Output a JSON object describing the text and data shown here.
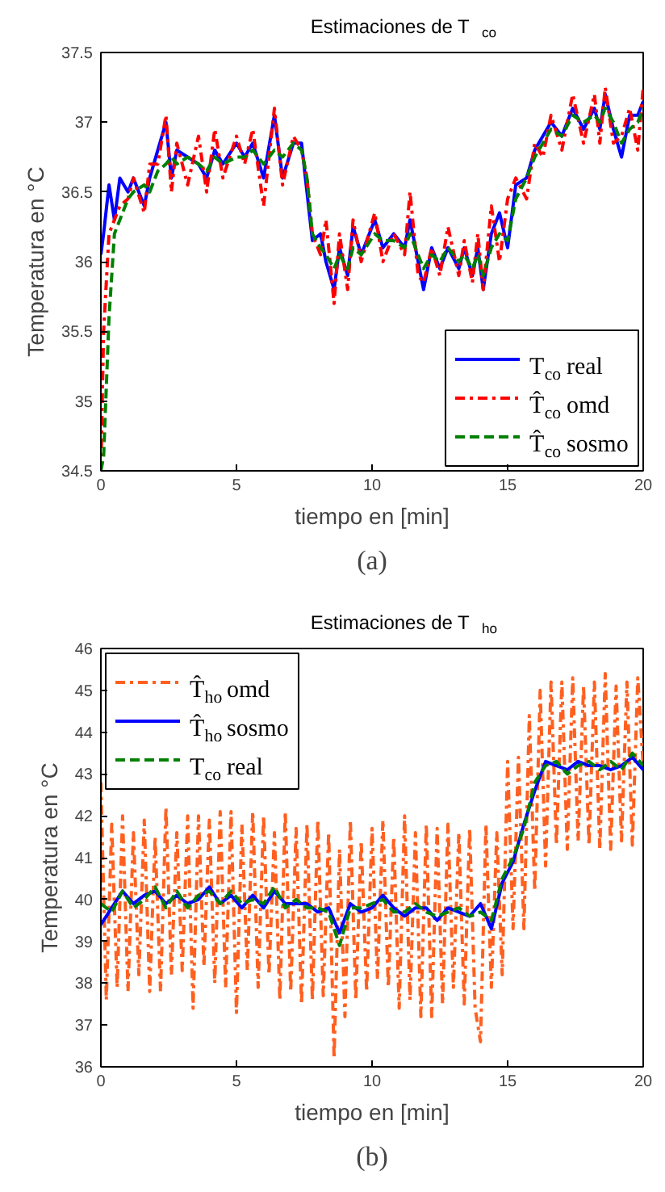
{
  "chart_data": [
    {
      "type": "line",
      "title": "Estimaciones de T$_{co}$",
      "xlabel": "tiempo en [min]",
      "ylabel": "Temperatura en °C",
      "annotations": [
        "(a)"
      ],
      "xlim": [
        0,
        20
      ],
      "ylim": [
        34.5,
        37.5
      ],
      "xticks": [
        0,
        5,
        10,
        15,
        20
      ],
      "yticks": [
        34.5,
        35,
        35.5,
        36,
        36.5,
        37,
        37.5
      ],
      "grid": false,
      "legend": "bottom right",
      "x": [
        0,
        0.1,
        0.3,
        0.5,
        0.7,
        1.0,
        1.2,
        1.6,
        1.8,
        2.1,
        2.4,
        2.6,
        2.8,
        3.2,
        3.6,
        3.9,
        4.2,
        4.5,
        5.0,
        5.3,
        5.6,
        6.0,
        6.4,
        6.7,
        7.1,
        7.4,
        7.6,
        7.8,
        8.1,
        8.3,
        8.6,
        8.8,
        9.1,
        9.3,
        9.6,
        10.1,
        10.4,
        10.8,
        11.2,
        11.4,
        11.7,
        11.9,
        12.2,
        12.5,
        12.8,
        13.2,
        13.4,
        13.7,
        13.9,
        14.1,
        14.4,
        14.7,
        15.0,
        15.3,
        15.7,
        16.0,
        16.3,
        16.6,
        17.0,
        17.4,
        17.8,
        18.2,
        18.4,
        18.6,
        18.9,
        19.2,
        19.5,
        19.8,
        20.0
      ],
      "series": [
        {
          "name": "T$_{co}$ real",
          "color": "#0000ff",
          "line_style": "solid",
          "values": [
            36.05,
            36.2,
            36.55,
            36.3,
            36.6,
            36.5,
            36.6,
            36.4,
            36.6,
            36.8,
            37.0,
            36.6,
            36.8,
            36.75,
            36.7,
            36.6,
            36.8,
            36.7,
            36.85,
            36.75,
            36.85,
            36.6,
            37.05,
            36.6,
            36.85,
            36.85,
            36.5,
            36.15,
            36.2,
            36.0,
            35.8,
            36.1,
            35.9,
            36.25,
            36.05,
            36.3,
            36.1,
            36.2,
            36.1,
            36.3,
            36.0,
            35.8,
            36.1,
            35.95,
            36.1,
            35.95,
            36.1,
            35.9,
            36.1,
            35.8,
            36.2,
            36.35,
            36.1,
            36.55,
            36.6,
            36.8,
            36.9,
            37.0,
            36.9,
            37.1,
            36.95,
            37.1,
            36.95,
            37.2,
            36.95,
            36.75,
            37.05,
            37.05,
            37.15
          ]
        },
        {
          "name": "T̂$_{co}$ omd",
          "color": "#ff0000",
          "line_style": "dashdot",
          "values": [
            34.5,
            35.5,
            36.2,
            36.3,
            36.4,
            36.45,
            36.6,
            36.35,
            36.7,
            36.7,
            37.05,
            36.5,
            36.85,
            36.55,
            36.9,
            36.5,
            36.95,
            36.6,
            36.9,
            36.7,
            36.95,
            36.4,
            37.1,
            36.55,
            36.9,
            36.8,
            36.6,
            36.2,
            36.05,
            36.3,
            35.7,
            36.2,
            35.8,
            36.3,
            36.0,
            36.35,
            36.0,
            36.2,
            36.05,
            36.5,
            35.9,
            35.85,
            36.1,
            35.9,
            36.25,
            35.9,
            36.15,
            35.85,
            36.2,
            35.8,
            36.4,
            36.0,
            36.45,
            36.6,
            36.45,
            36.85,
            36.75,
            37.05,
            36.8,
            37.2,
            36.85,
            37.2,
            36.85,
            37.25,
            36.85,
            36.9,
            37.1,
            36.8,
            37.25
          ]
        },
        {
          "name": "T̂$_{co}$ sosmo",
          "color": "#008000",
          "line_style": "dashed",
          "values": [
            34.5,
            34.6,
            35.6,
            36.2,
            36.3,
            36.45,
            36.5,
            36.55,
            36.5,
            36.65,
            36.7,
            36.75,
            36.7,
            36.75,
            36.7,
            36.65,
            36.75,
            36.7,
            36.75,
            36.75,
            36.8,
            36.7,
            36.8,
            36.75,
            36.85,
            36.8,
            36.6,
            36.2,
            36.1,
            36.05,
            35.95,
            36.05,
            35.95,
            36.1,
            36.05,
            36.2,
            36.15,
            36.15,
            36.1,
            36.2,
            36.05,
            35.95,
            36.05,
            36.0,
            36.1,
            36.0,
            36.05,
            35.95,
            36.05,
            35.9,
            36.1,
            36.2,
            36.15,
            36.45,
            36.6,
            36.75,
            36.85,
            36.95,
            36.9,
            37.05,
            37.0,
            37.05,
            37.0,
            37.1,
            37.0,
            36.85,
            36.95,
            37.0,
            37.1
          ]
        }
      ]
    },
    {
      "type": "line",
      "title": "Estimaciones de T$_{ho}$",
      "xlabel": "tiempo en [min]",
      "ylabel": "Temperatura en °C",
      "annotations": [
        "(b)"
      ],
      "xlim": [
        0,
        20
      ],
      "ylim": [
        36,
        46
      ],
      "xticks": [
        0,
        5,
        10,
        15,
        20
      ],
      "yticks": [
        36,
        37,
        38,
        39,
        40,
        41,
        42,
        43,
        44,
        45,
        46
      ],
      "grid": false,
      "legend": "top left",
      "series": [
        {
          "name": "T̂$_{ho}$ omd",
          "color": "#ff6020",
          "line_style": "dashdot",
          "x": [
            0,
            0.2,
            0.4,
            0.6,
            0.8,
            1.0,
            1.2,
            1.4,
            1.6,
            1.8,
            2.0,
            2.2,
            2.4,
            2.6,
            2.8,
            3.0,
            3.2,
            3.4,
            3.6,
            3.8,
            4.0,
            4.2,
            4.4,
            4.6,
            4.8,
            5.0,
            5.2,
            5.4,
            5.6,
            5.8,
            6.0,
            6.2,
            6.4,
            6.6,
            6.8,
            7.0,
            7.2,
            7.4,
            7.6,
            7.8,
            8.0,
            8.2,
            8.4,
            8.6,
            8.8,
            9.0,
            9.2,
            9.4,
            9.6,
            9.8,
            10.0,
            10.2,
            10.4,
            10.6,
            10.8,
            11.0,
            11.2,
            11.4,
            11.6,
            11.8,
            12.0,
            12.2,
            12.4,
            12.6,
            12.8,
            13.0,
            13.2,
            13.4,
            13.6,
            13.8,
            14.0,
            14.2,
            14.4,
            14.6,
            14.8,
            15.0,
            15.2,
            15.4,
            15.6,
            15.8,
            16.0,
            16.2,
            16.4,
            16.6,
            16.8,
            17.0,
            17.2,
            17.4,
            17.6,
            17.8,
            18.0,
            18.2,
            18.4,
            18.6,
            18.8,
            19.0,
            19.2,
            19.4,
            19.6,
            19.8,
            20.0
          ],
          "values": [
            42.8,
            37.6,
            41.8,
            37.9,
            42.0,
            37.8,
            41.6,
            38.2,
            41.9,
            37.8,
            41.5,
            37.8,
            42.2,
            38.2,
            41.6,
            38.3,
            42.0,
            37.4,
            42.0,
            38.4,
            41.9,
            38.0,
            42.1,
            37.9,
            42.1,
            37.3,
            41.8,
            38.3,
            42.1,
            37.9,
            42.0,
            38.2,
            41.6,
            37.6,
            42.1,
            37.8,
            41.7,
            37.5,
            41.8,
            37.6,
            41.9,
            37.7,
            41.6,
            36.2,
            41.2,
            37.2,
            41.9,
            37.6,
            41.4,
            37.8,
            41.7,
            38.1,
            41.9,
            37.9,
            41.5,
            37.4,
            42.0,
            37.6,
            41.6,
            37.2,
            41.8,
            37.2,
            41.7,
            37.5,
            41.8,
            37.9,
            41.6,
            37.5,
            41.7,
            37.4,
            36.6,
            41.8,
            37.9,
            41.6,
            38.2,
            43.3,
            39.3,
            43.4,
            39.3,
            44.4,
            40.2,
            45.0,
            40.8,
            45.2,
            41.3,
            45.2,
            41.2,
            45.3,
            41.4,
            45.1,
            41.3,
            45.2,
            41.2,
            45.4,
            41.2,
            45.1,
            41.4,
            45.2,
            41.3,
            45.3,
            43.2
          ]
        },
        {
          "name": "T̂$_{ho}$ sosmo",
          "color": "#0000ff",
          "line_style": "solid",
          "x": [
            0,
            0.4,
            0.8,
            1.2,
            1.6,
            2.0,
            2.4,
            2.8,
            3.2,
            3.6,
            4.0,
            4.4,
            4.8,
            5.2,
            5.6,
            6.0,
            6.4,
            6.8,
            7.2,
            7.6,
            8.0,
            8.4,
            8.8,
            9.2,
            9.6,
            10.0,
            10.4,
            10.8,
            11.2,
            11.6,
            12.0,
            12.4,
            12.8,
            13.2,
            13.6,
            14.0,
            14.4,
            14.8,
            15.2,
            15.6,
            16.0,
            16.4,
            16.8,
            17.2,
            17.6,
            18.0,
            18.4,
            18.8,
            19.2,
            19.6,
            20.0
          ],
          "values": [
            39.4,
            39.8,
            40.2,
            39.9,
            40.1,
            40.2,
            39.9,
            40.1,
            39.9,
            40.0,
            40.3,
            39.9,
            40.1,
            39.8,
            40.1,
            39.8,
            40.2,
            39.9,
            39.9,
            39.9,
            39.7,
            39.8,
            39.2,
            39.9,
            39.7,
            39.8,
            40.1,
            39.8,
            39.6,
            39.8,
            39.8,
            39.5,
            39.8,
            39.7,
            39.6,
            39.9,
            39.3,
            40.4,
            40.9,
            41.8,
            42.6,
            43.3,
            43.2,
            43.1,
            43.3,
            43.2,
            43.2,
            43.1,
            43.2,
            43.4,
            43.1
          ]
        },
        {
          "name": "T$_{co}$ real",
          "color": "#008000",
          "line_style": "dashed",
          "x": [
            0,
            0.4,
            0.8,
            1.2,
            1.6,
            2.0,
            2.4,
            2.8,
            3.2,
            3.6,
            4.0,
            4.4,
            4.8,
            5.2,
            5.6,
            6.0,
            6.4,
            6.8,
            7.2,
            7.6,
            8.0,
            8.4,
            8.8,
            9.2,
            9.6,
            10.0,
            10.4,
            10.8,
            11.2,
            11.6,
            12.0,
            12.4,
            12.8,
            13.2,
            13.6,
            14.0,
            14.4,
            14.8,
            15.2,
            15.6,
            16.0,
            16.4,
            16.8,
            17.2,
            17.6,
            18.0,
            18.4,
            18.8,
            19.2,
            19.6,
            20.0
          ],
          "values": [
            39.9,
            39.7,
            40.2,
            39.8,
            40.0,
            40.3,
            39.8,
            40.2,
            39.8,
            40.1,
            40.2,
            39.9,
            40.2,
            39.9,
            40.0,
            39.9,
            40.3,
            39.8,
            40.0,
            39.8,
            39.8,
            39.7,
            38.9,
            39.8,
            39.8,
            39.9,
            40.0,
            39.7,
            39.7,
            39.9,
            39.7,
            39.6,
            39.7,
            39.8,
            39.6,
            39.7,
            39.5,
            40.5,
            41.0,
            41.7,
            42.8,
            43.2,
            43.3,
            43.0,
            43.2,
            43.3,
            43.1,
            43.3,
            43.1,
            43.5,
            43.2
          ]
        }
      ]
    }
  ]
}
